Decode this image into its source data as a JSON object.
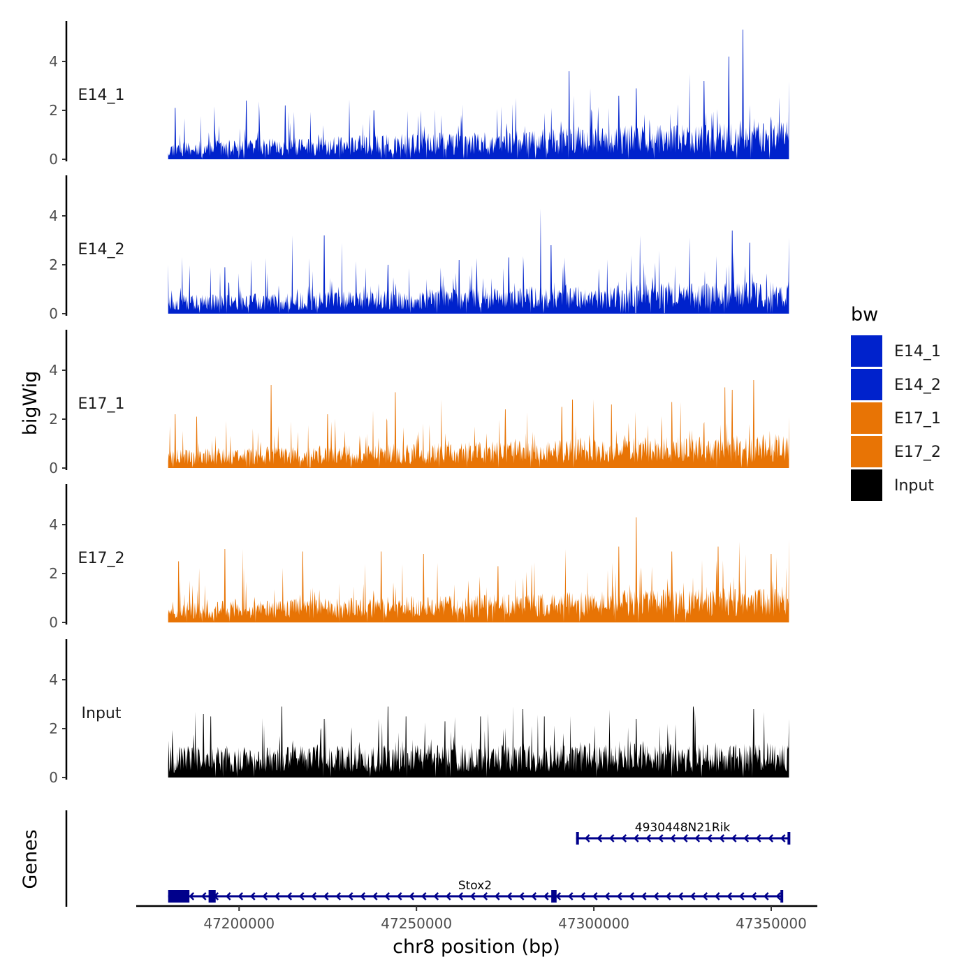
{
  "chart_data": {
    "type": "area",
    "chromosome": "chr8",
    "xlabel": "chr8 position (bp)",
    "ylabel": "bigWig",
    "genes_ylabel": "Genes",
    "xlim": [
      47171000,
      47363000
    ],
    "data_range": [
      47180000,
      47355000
    ],
    "x_ticks": [
      47200000,
      47250000,
      47300000,
      47350000
    ],
    "x_tick_labels": [
      "47200000",
      "47250000",
      "47300000",
      "47350000"
    ],
    "ylim": [
      0,
      5.5
    ],
    "y_ticks": [
      0,
      2,
      4
    ],
    "y_tick_labels": [
      "0",
      "2",
      "4"
    ],
    "legend": {
      "title": "bw",
      "position": "right",
      "entries": [
        {
          "label": "E14_1",
          "color": "#0022CC"
        },
        {
          "label": "E14_2",
          "color": "#0022CC"
        },
        {
          "label": "E17_1",
          "color": "#E87405"
        },
        {
          "label": "E17_2",
          "color": "#E87405"
        },
        {
          "label": "Input",
          "color": "#000000"
        }
      ]
    },
    "series": [
      {
        "name": "E14_1",
        "color": "#0022CC",
        "seed": 11,
        "base": 0.55,
        "trend": 0.75,
        "peaks": [
          [
            47182000,
            2.1
          ],
          [
            47202000,
            2.4
          ],
          [
            47213000,
            2.2
          ],
          [
            47238000,
            2.0
          ],
          [
            47278000,
            2.5
          ],
          [
            47293000,
            3.6
          ],
          [
            47299000,
            2.9
          ],
          [
            47307000,
            2.6
          ],
          [
            47312000,
            2.9
          ],
          [
            47327000,
            3.5
          ],
          [
            47331000,
            3.2
          ],
          [
            47338000,
            4.2
          ],
          [
            47342000,
            5.3
          ],
          [
            47355000,
            3.2
          ]
        ]
      },
      {
        "name": "E14_2",
        "color": "#0022CC",
        "seed": 23,
        "base": 0.6,
        "trend": 0.5,
        "peaks": [
          [
            47180000,
            2.0
          ],
          [
            47196000,
            1.9
          ],
          [
            47215000,
            3.2
          ],
          [
            47224000,
            3.2
          ],
          [
            47229000,
            2.9
          ],
          [
            47242000,
            2.0
          ],
          [
            47262000,
            2.2
          ],
          [
            47276000,
            2.3
          ],
          [
            47285000,
            4.3
          ],
          [
            47288000,
            2.8
          ],
          [
            47313000,
            3.2
          ],
          [
            47327000,
            3.1
          ],
          [
            47339000,
            3.4
          ],
          [
            47344000,
            2.9
          ],
          [
            47355000,
            3.1
          ]
        ]
      },
      {
        "name": "E17_1",
        "color": "#E87405",
        "seed": 37,
        "base": 0.6,
        "trend": 0.55,
        "peaks": [
          [
            47182000,
            2.2
          ],
          [
            47188000,
            2.1
          ],
          [
            47209000,
            3.4
          ],
          [
            47225000,
            2.2
          ],
          [
            47244000,
            3.1
          ],
          [
            47257000,
            2.8
          ],
          [
            47275000,
            2.4
          ],
          [
            47291000,
            2.5
          ],
          [
            47294000,
            2.8
          ],
          [
            47305000,
            2.6
          ],
          [
            47322000,
            2.7
          ],
          [
            47337000,
            3.3
          ],
          [
            47339000,
            3.2
          ],
          [
            47345000,
            3.6
          ],
          [
            47355000,
            2.1
          ]
        ]
      },
      {
        "name": "E17_2",
        "color": "#E87405",
        "seed": 51,
        "base": 0.65,
        "trend": 0.55,
        "peaks": [
          [
            47183000,
            2.5
          ],
          [
            47196000,
            3.0
          ],
          [
            47201000,
            3.0
          ],
          [
            47218000,
            2.9
          ],
          [
            47240000,
            2.9
          ],
          [
            47252000,
            2.8
          ],
          [
            47273000,
            2.3
          ],
          [
            47292000,
            3.0
          ],
          [
            47307000,
            3.1
          ],
          [
            47312000,
            4.3
          ],
          [
            47322000,
            2.9
          ],
          [
            47335000,
            3.1
          ],
          [
            47341000,
            3.3
          ],
          [
            47350000,
            2.8
          ],
          [
            47355000,
            3.4
          ]
        ]
      },
      {
        "name": "Input",
        "color": "#000000",
        "seed": 67,
        "base": 1.0,
        "trend": 0.1,
        "peaks": [
          [
            47190000,
            2.6
          ],
          [
            47192000,
            2.5
          ],
          [
            47212000,
            2.9
          ],
          [
            47224000,
            2.4
          ],
          [
            47242000,
            2.9
          ],
          [
            47247000,
            2.5
          ],
          [
            47258000,
            2.3
          ],
          [
            47268000,
            2.5
          ],
          [
            47280000,
            2.8
          ],
          [
            47286000,
            2.5
          ],
          [
            47312000,
            2.4
          ],
          [
            47328000,
            2.9
          ],
          [
            47345000,
            2.8
          ],
          [
            47355000,
            2.4
          ]
        ]
      }
    ],
    "genes": [
      {
        "name": "4930448N21Rik",
        "start": 47295000,
        "end": 47355000,
        "row": 0,
        "strand": "-",
        "exons": [
          [
            47295000,
            47295600
          ],
          [
            47354600,
            47355000
          ]
        ]
      },
      {
        "name": "Stox2",
        "start": 47180000,
        "end": 47353000,
        "row": 1,
        "strand": "-",
        "exons": [
          [
            47180000,
            47186000
          ],
          [
            47191400,
            47193400
          ],
          [
            47288000,
            47289500
          ],
          [
            47352600,
            47353000
          ]
        ]
      }
    ]
  }
}
